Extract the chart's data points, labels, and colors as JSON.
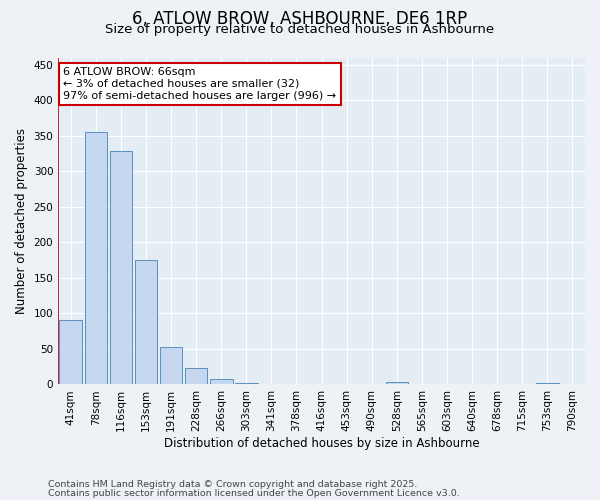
{
  "title": "6, ATLOW BROW, ASHBOURNE, DE6 1RP",
  "subtitle": "Size of property relative to detached houses in Ashbourne",
  "xlabel": "Distribution of detached houses by size in Ashbourne",
  "ylabel": "Number of detached properties",
  "categories": [
    "41sqm",
    "78sqm",
    "116sqm",
    "153sqm",
    "191sqm",
    "228sqm",
    "266sqm",
    "303sqm",
    "341sqm",
    "378sqm",
    "416sqm",
    "453sqm",
    "490sqm",
    "528sqm",
    "565sqm",
    "603sqm",
    "640sqm",
    "678sqm",
    "715sqm",
    "753sqm",
    "790sqm"
  ],
  "values": [
    90,
    355,
    328,
    175,
    52,
    23,
    8,
    2,
    0,
    0,
    0,
    0,
    0,
    3,
    0,
    0,
    0,
    0,
    0,
    2,
    0
  ],
  "bar_color": "#c5d8f0",
  "bar_edge_color": "#5a8fc0",
  "vline_color": "#cc0000",
  "vline_x_index": -0.5,
  "annotation_text_line1": "6 ATLOW BROW: 66sqm",
  "annotation_text_line2": "← 3% of detached houses are smaller (32)",
  "annotation_text_line3": "97% of semi-detached houses are larger (996) →",
  "annotation_box_color": "#ffffff",
  "annotation_box_edge": "#cc0000",
  "ylim": [
    0,
    460
  ],
  "yticks": [
    0,
    50,
    100,
    150,
    200,
    250,
    300,
    350,
    400,
    450
  ],
  "footer_line1": "Contains HM Land Registry data © Crown copyright and database right 2025.",
  "footer_line2": "Contains public sector information licensed under the Open Government Licence v3.0.",
  "background_color": "#eef2f7",
  "plot_bg_color": "#e4ecf4",
  "title_fontsize": 12,
  "subtitle_fontsize": 9.5,
  "axis_label_fontsize": 8.5,
  "tick_fontsize": 7.5,
  "footer_fontsize": 6.8,
  "annotation_fontsize": 8
}
